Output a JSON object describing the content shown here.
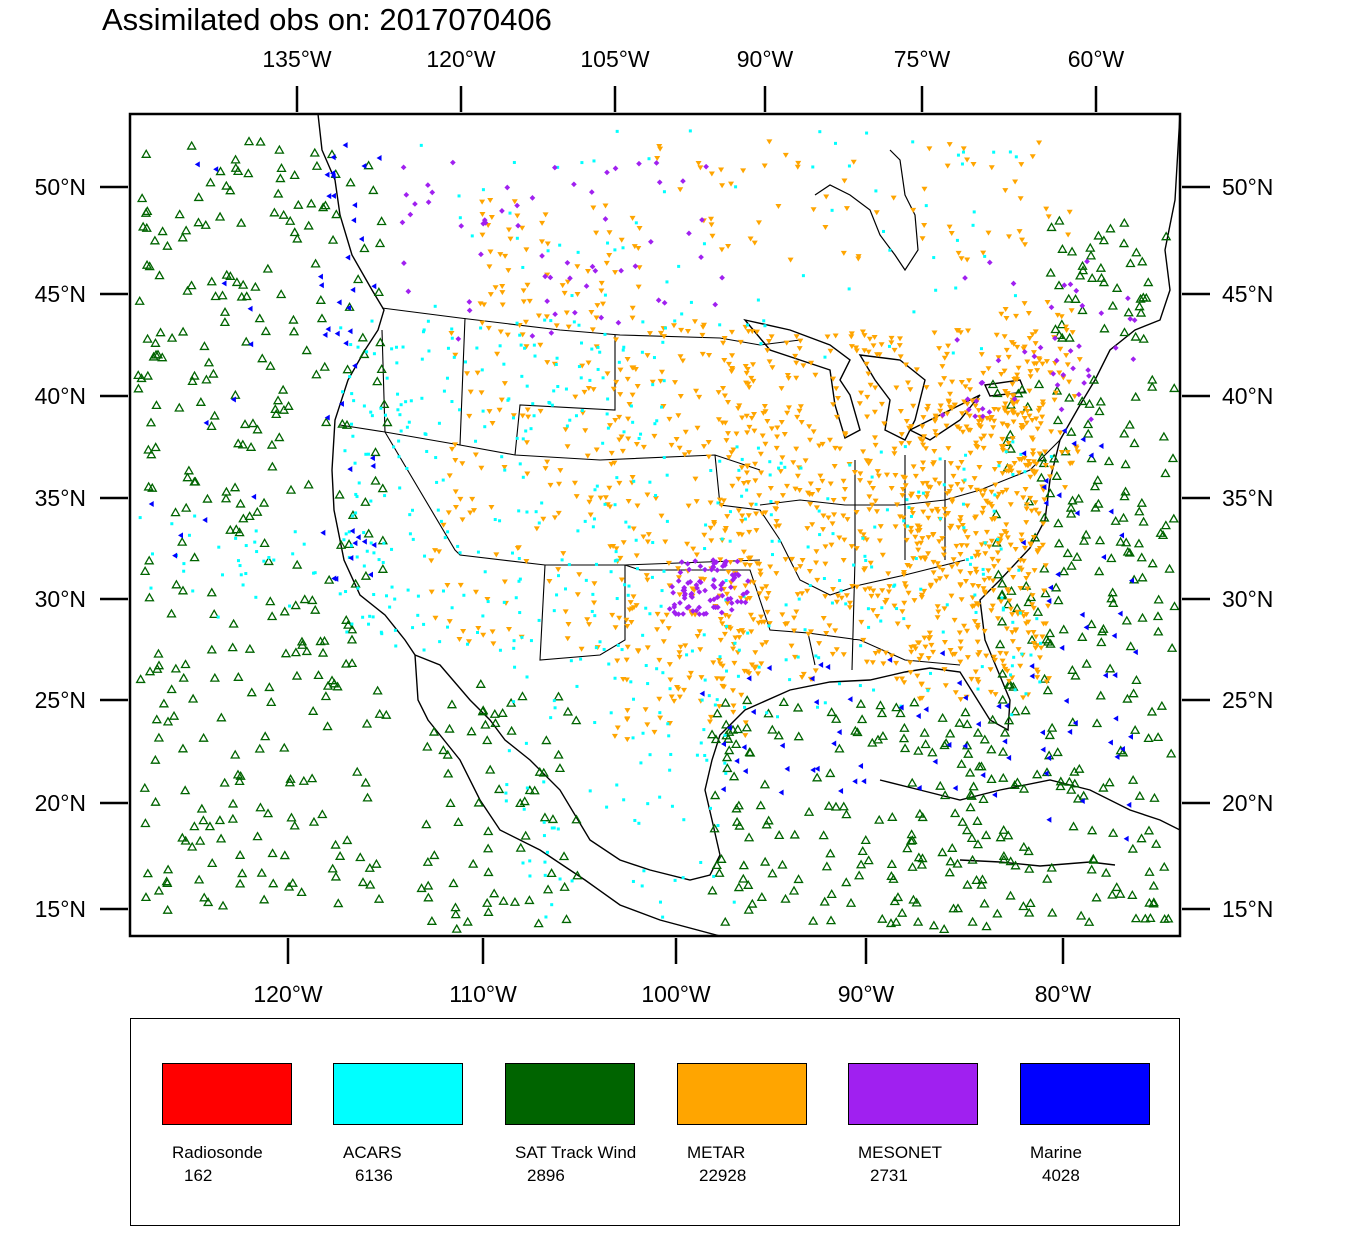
{
  "title": "Assimilated obs on: 2017070406",
  "top_lon_ticks": [
    "135°W",
    "120°W",
    "105°W",
    "90°W",
    "75°W",
    "60°W"
  ],
  "bottom_lon_ticks": [
    "120°W",
    "110°W",
    "100°W",
    "90°W",
    "80°W"
  ],
  "lat_ticks": [
    "50°N",
    "45°N",
    "40°N",
    "35°N",
    "30°N",
    "25°N",
    "20°N",
    "15°N"
  ],
  "legend": [
    {
      "name": "Radiosonde",
      "count": "162",
      "color": "#ff0000"
    },
    {
      "name": "ACARS",
      "count": "6136",
      "color": "#00ffff"
    },
    {
      "name": "SAT Track Wind",
      "count": "2896",
      "color": "#006400"
    },
    {
      "name": "METAR",
      "count": "22928",
      "color": "#ffa500"
    },
    {
      "name": "MESONET",
      "count": "2731",
      "color": "#a020f0"
    },
    {
      "name": "Marine",
      "count": "4028",
      "color": "#0000ff"
    }
  ]
}
